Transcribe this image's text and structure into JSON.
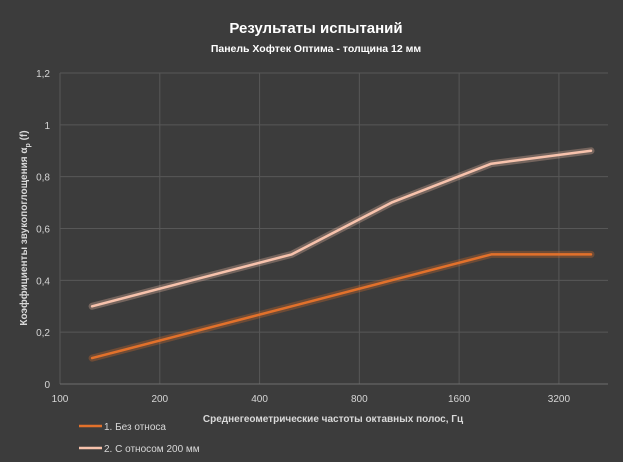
{
  "chart_data": {
    "type": "line",
    "title": "Результаты испытаний",
    "subtitle": "Панель Хофтек Оптима - толщина 12 мм",
    "xlabel": "Среднегеометрические частоты октавных полос, Гц",
    "ylabel_main": "Коэффициенты звукопоглощения α",
    "ylabel_sub": "p",
    "ylabel_tail": " (f)",
    "x_scale": "log2",
    "xlim": [
      100,
      4500
    ],
    "ylim": [
      0,
      1.2
    ],
    "x_ticks": [
      {
        "value": 100,
        "label": "100"
      },
      {
        "value": 200,
        "label": "200"
      },
      {
        "value": 400,
        "label": "400"
      },
      {
        "value": 800,
        "label": "800"
      },
      {
        "value": 1600,
        "label": "1600"
      },
      {
        "value": 3200,
        "label": "3200"
      }
    ],
    "y_ticks": [
      {
        "value": 0,
        "label": "0"
      },
      {
        "value": 0.2,
        "label": "0,2"
      },
      {
        "value": 0.4,
        "label": "0,4"
      },
      {
        "value": 0.6,
        "label": "0,6"
      },
      {
        "value": 0.8,
        "label": "0,8"
      },
      {
        "value": 1.0,
        "label": "1"
      },
      {
        "value": 1.2,
        "label": "1,2"
      }
    ],
    "grid": true,
    "legend_position": "bottom-left",
    "series": [
      {
        "name": "1. Без относа",
        "color": "#e2712b",
        "x": [
          125,
          250,
          500,
          1000,
          2000,
          4000
        ],
        "y": [
          0.1,
          0.2,
          0.3,
          0.4,
          0.5,
          0.5
        ]
      },
      {
        "name": "2. С относом 200 мм",
        "color": "#f7c2ac",
        "x": [
          125,
          250,
          500,
          1000,
          2000,
          4000
        ],
        "y": [
          0.3,
          0.4,
          0.5,
          0.7,
          0.85,
          0.9
        ]
      }
    ]
  }
}
